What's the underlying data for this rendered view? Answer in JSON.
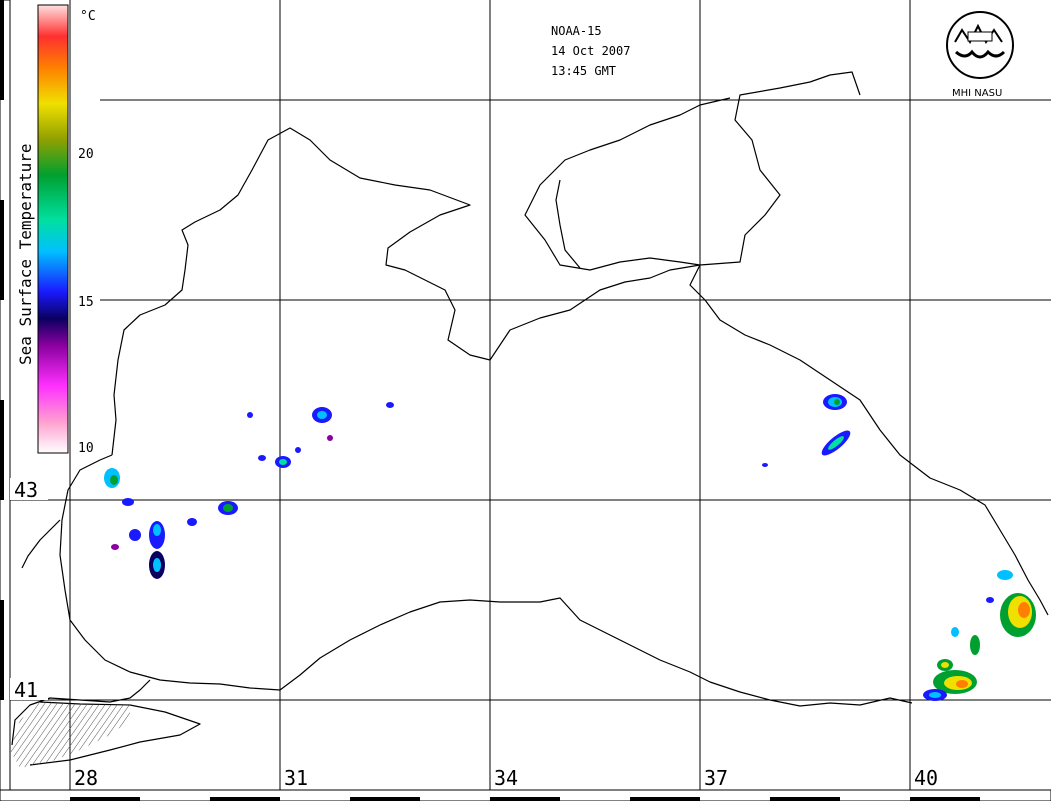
{
  "header": {
    "satellite": "NOAA-15",
    "date": "14 Oct 2007",
    "time": "13:45 GMT"
  },
  "logo": {
    "text": "MHI NASU",
    "icon": "mhi-wave-emblem-icon"
  },
  "colorbar": {
    "title": "Sea Surface Temperature",
    "unit": "°C",
    "ticks": [
      "20",
      "15",
      "10"
    ],
    "colors": [
      "#ffffff",
      "#ff9fd0",
      "#ff30ff",
      "#8a00a0",
      "#0a0060",
      "#1a1aff",
      "#00c0ff",
      "#00e0a0",
      "#00a030",
      "#90a000",
      "#f0e000",
      "#ff8000",
      "#ff3030",
      "#ffe0e0"
    ]
  },
  "grid": {
    "latitudes": [
      "43",
      "41"
    ],
    "longitudes": [
      "28",
      "31",
      "34",
      "37",
      "40"
    ],
    "line_color": "#000000"
  },
  "map": {
    "coast_color": "#000000",
    "cloud_free_patches": "sea surface temperature retrievals"
  }
}
